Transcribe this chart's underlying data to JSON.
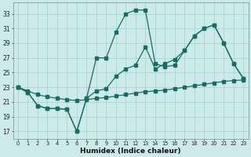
{
  "xlabel": "Humidex (Indice chaleur)",
  "bg_color": "#cceae8",
  "grid_color": "#aad4d0",
  "line_color": "#1a6b60",
  "xlim": [
    -0.5,
    23.5
  ],
  "ylim": [
    16.0,
    34.5
  ],
  "yticks": [
    17,
    19,
    21,
    23,
    25,
    27,
    29,
    31,
    33
  ],
  "xticks": [
    0,
    1,
    2,
    3,
    4,
    5,
    6,
    7,
    8,
    9,
    10,
    11,
    12,
    13,
    14,
    15,
    16,
    17,
    18,
    19,
    20,
    21,
    22,
    23
  ],
  "curve1_x": [
    0,
    1,
    2,
    3,
    4,
    5,
    6,
    7,
    8,
    9,
    10,
    11,
    12,
    13,
    14,
    15,
    16,
    17,
    18,
    19,
    20,
    21,
    22,
    23
  ],
  "curve1_y": [
    23.0,
    22.3,
    20.5,
    20.1,
    20.1,
    20.0,
    17.0,
    21.5,
    27.0,
    27.0,
    30.5,
    33.0,
    33.5,
    33.5,
    26.2,
    25.8,
    26.0,
    28.0,
    30.0,
    31.0,
    31.5,
    29.0,
    26.2,
    24.2
  ],
  "curve2_x": [
    0,
    1,
    2,
    3,
    4,
    5,
    6,
    7,
    8,
    9,
    10,
    11,
    12,
    13,
    14,
    15,
    16,
    17,
    18,
    19,
    20,
    21,
    22,
    23
  ],
  "curve2_y": [
    23.0,
    22.3,
    20.5,
    20.1,
    20.1,
    20.0,
    17.0,
    21.5,
    22.5,
    22.8,
    24.5,
    25.5,
    26.0,
    28.5,
    25.5,
    26.2,
    26.8,
    28.0,
    30.0,
    31.0,
    31.5,
    29.0,
    26.2,
    24.2
  ],
  "curve3_x": [
    0,
    1,
    2,
    3,
    4,
    5,
    6,
    7,
    8,
    9,
    10,
    11,
    12,
    13,
    14,
    15,
    16,
    17,
    18,
    19,
    20,
    21,
    22,
    23
  ],
  "curve3_y": [
    23.0,
    22.5,
    22.0,
    21.7,
    21.5,
    21.3,
    21.2,
    21.3,
    21.5,
    21.6,
    21.8,
    22.0,
    22.2,
    22.4,
    22.5,
    22.6,
    22.8,
    23.0,
    23.2,
    23.4,
    23.6,
    23.8,
    23.9,
    24.0
  ]
}
